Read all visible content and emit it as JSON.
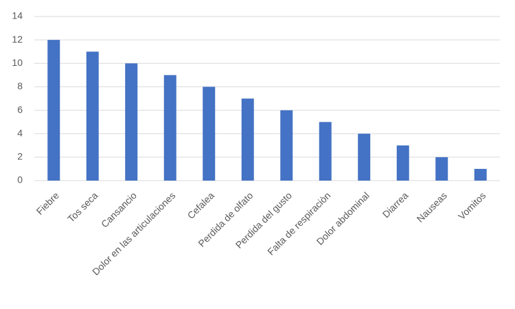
{
  "chart_data": {
    "type": "bar",
    "categories": [
      "Fiebre",
      "Tos seca",
      "Cansancio",
      "Dolor en las articulaciones",
      "Cefalea",
      "Perdida de olfato",
      "Perdida del gusto",
      "Falta de respiraciòn",
      "Dolor abdominal",
      "Diarrea",
      "Nauseas",
      "Vomitos"
    ],
    "values": [
      12,
      11,
      10,
      9,
      8,
      7,
      6,
      5,
      4,
      3,
      2,
      1
    ],
    "color": "#4472c4",
    "ylim": [
      0,
      14
    ],
    "yticks": [
      0,
      2,
      4,
      6,
      8,
      10,
      12,
      14
    ],
    "grid": true
  }
}
